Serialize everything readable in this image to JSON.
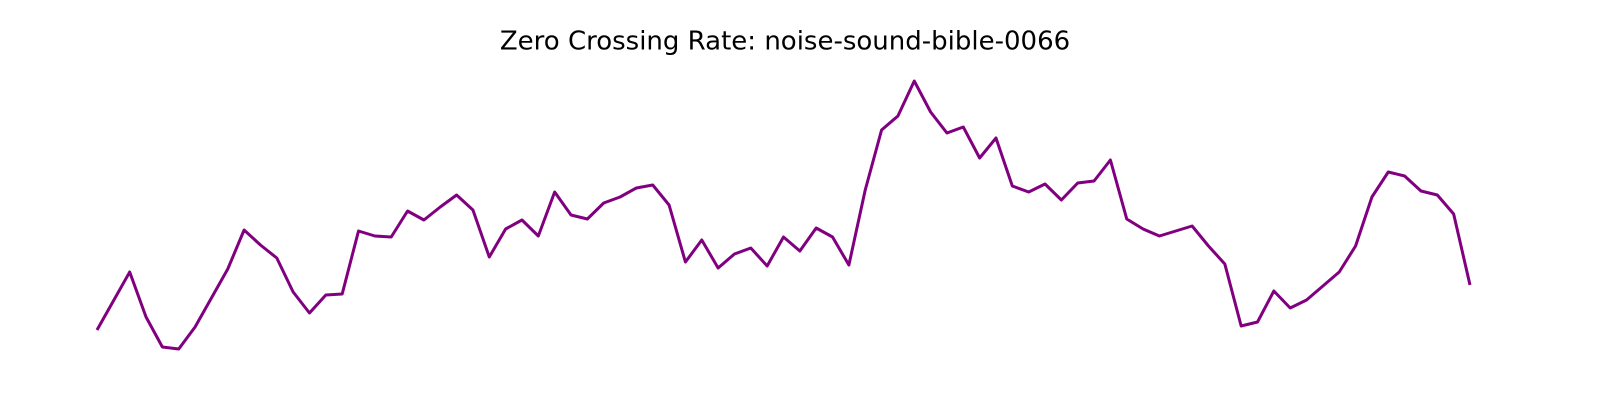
{
  "chart_data": {
    "type": "line",
    "title": "Zero Crossing Rate: noise-sound-bible-0066",
    "color": "#800080",
    "values": [
      0.07,
      0.099,
      0.128,
      0.083,
      0.053,
      0.051,
      0.073,
      0.102,
      0.131,
      0.17,
      0.155,
      0.142,
      0.108,
      0.087,
      0.105,
      0.106,
      0.169,
      0.164,
      0.163,
      0.189,
      0.18,
      0.193,
      0.205,
      0.19,
      0.143,
      0.171,
      0.18,
      0.164,
      0.208,
      0.185,
      0.181,
      0.197,
      0.203,
      0.212,
      0.215,
      0.195,
      0.138,
      0.16,
      0.132,
      0.146,
      0.152,
      0.134,
      0.163,
      0.149,
      0.172,
      0.163,
      0.135,
      0.21,
      0.27,
      0.284,
      0.319,
      0.288,
      0.267,
      0.273,
      0.242,
      0.262,
      0.214,
      0.208,
      0.216,
      0.2,
      0.217,
      0.219,
      0.24,
      0.181,
      0.171,
      0.164,
      0.169,
      0.174,
      0.154,
      0.136,
      0.074,
      0.078,
      0.109,
      0.092,
      0.1,
      0.114,
      0.128,
      0.154,
      0.203,
      0.228,
      0.224,
      0.209,
      0.205,
      0.186,
      0.115
    ]
  }
}
